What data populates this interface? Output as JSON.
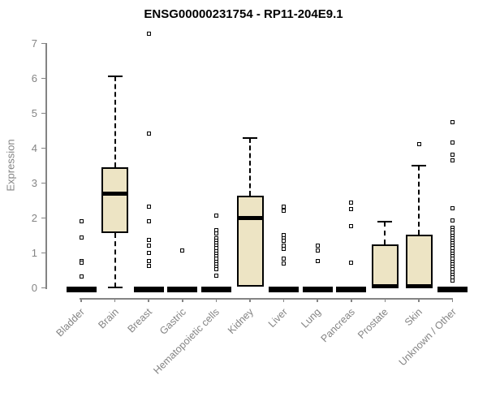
{
  "chart_data": {
    "type": "boxplot",
    "title": "ENSG00000231754 - RP11-204E9.1",
    "xlabel": "",
    "ylabel": "Expression",
    "ylim": [
      0,
      7
    ],
    "yticks": [
      0,
      1,
      2,
      3,
      4,
      5,
      6,
      7
    ],
    "grid": false,
    "legend": null,
    "box_fill_color": "#EDE4C4",
    "box_border_color": "#000000",
    "axis_color": "#848484",
    "categories": [
      "Bladder",
      "Brain",
      "Breast",
      "Gastric",
      "Hematopoietic cells",
      "Kidney",
      "Liver",
      "Lung",
      "Pancreas",
      "Prostate",
      "Skin",
      "Unknown / Other"
    ],
    "boxes": [
      {
        "category": "Bladder",
        "q1": 0,
        "median": 0,
        "q3": 0,
        "whisker_low": 0,
        "whisker_high": 0,
        "outliers": [
          1.9,
          1.44,
          0.78,
          0.72,
          0.32
        ]
      },
      {
        "category": "Brain",
        "q1": 1.58,
        "median": 2.69,
        "q3": 3.46,
        "whisker_low": 0.02,
        "whisker_high": 6.05,
        "outliers": []
      },
      {
        "category": "Breast",
        "q1": 0,
        "median": 0,
        "q3": 0,
        "whisker_low": 0,
        "whisker_high": 0,
        "outliers": [
          7.27,
          4.41,
          2.32,
          1.9,
          1.37,
          1.22,
          1.0,
          0.77,
          0.62
        ]
      },
      {
        "category": "Gastric",
        "q1": 0,
        "median": 0,
        "q3": 0,
        "whisker_low": 0,
        "whisker_high": 0,
        "outliers": [
          1.06
        ]
      },
      {
        "category": "Hematopoietic cells",
        "q1": 0,
        "median": 0,
        "q3": 0,
        "whisker_low": 0,
        "whisker_high": 0,
        "outliers": [
          2.08,
          1.66,
          1.57,
          1.43,
          1.35,
          1.28,
          1.2,
          1.13,
          1.05,
          0.98,
          0.9,
          0.83,
          0.75,
          0.68,
          0.6,
          0.53,
          0.36
        ]
      },
      {
        "category": "Kidney",
        "q1": 0.03,
        "median": 2.01,
        "q3": 2.63,
        "whisker_low": 0.03,
        "whisker_high": 4.29,
        "outliers": []
      },
      {
        "category": "Liver",
        "q1": 0,
        "median": 0,
        "q3": 0,
        "whisker_low": 0,
        "whisker_high": 0,
        "outliers": [
          2.32,
          2.2,
          1.52,
          1.43,
          1.34,
          1.22,
          1.11,
          0.85,
          0.7
        ]
      },
      {
        "category": "Lung",
        "q1": 0,
        "median": 0,
        "q3": 0,
        "whisker_low": 0,
        "whisker_high": 0,
        "outliers": [
          1.2,
          1.08,
          0.76
        ]
      },
      {
        "category": "Pancreas",
        "q1": 0,
        "median": 0,
        "q3": 0,
        "whisker_low": 0,
        "whisker_high": 0,
        "outliers": [
          2.43,
          2.25,
          1.76,
          0.73
        ]
      },
      {
        "category": "Prostate",
        "q1": 0.02,
        "median": 0.04,
        "q3": 1.25,
        "whisker_low": 0.02,
        "whisker_high": 1.9,
        "outliers": []
      },
      {
        "category": "Skin",
        "q1": 0.02,
        "median": 0.04,
        "q3": 1.53,
        "whisker_low": 0.02,
        "whisker_high": 3.5,
        "outliers": [
          4.11
        ]
      },
      {
        "category": "Unknown / Other",
        "q1": 0,
        "median": 0,
        "q3": 0,
        "whisker_low": 0,
        "whisker_high": 0,
        "outliers": [
          4.75,
          4.15,
          3.81,
          3.64,
          2.27,
          1.92,
          1.73,
          1.65,
          1.58,
          1.5,
          1.43,
          1.35,
          1.28,
          1.2,
          1.13,
          1.05,
          0.98,
          0.9,
          0.83,
          0.75,
          0.68,
          0.6,
          0.53,
          0.45,
          0.38,
          0.3,
          0.22
        ]
      }
    ]
  }
}
